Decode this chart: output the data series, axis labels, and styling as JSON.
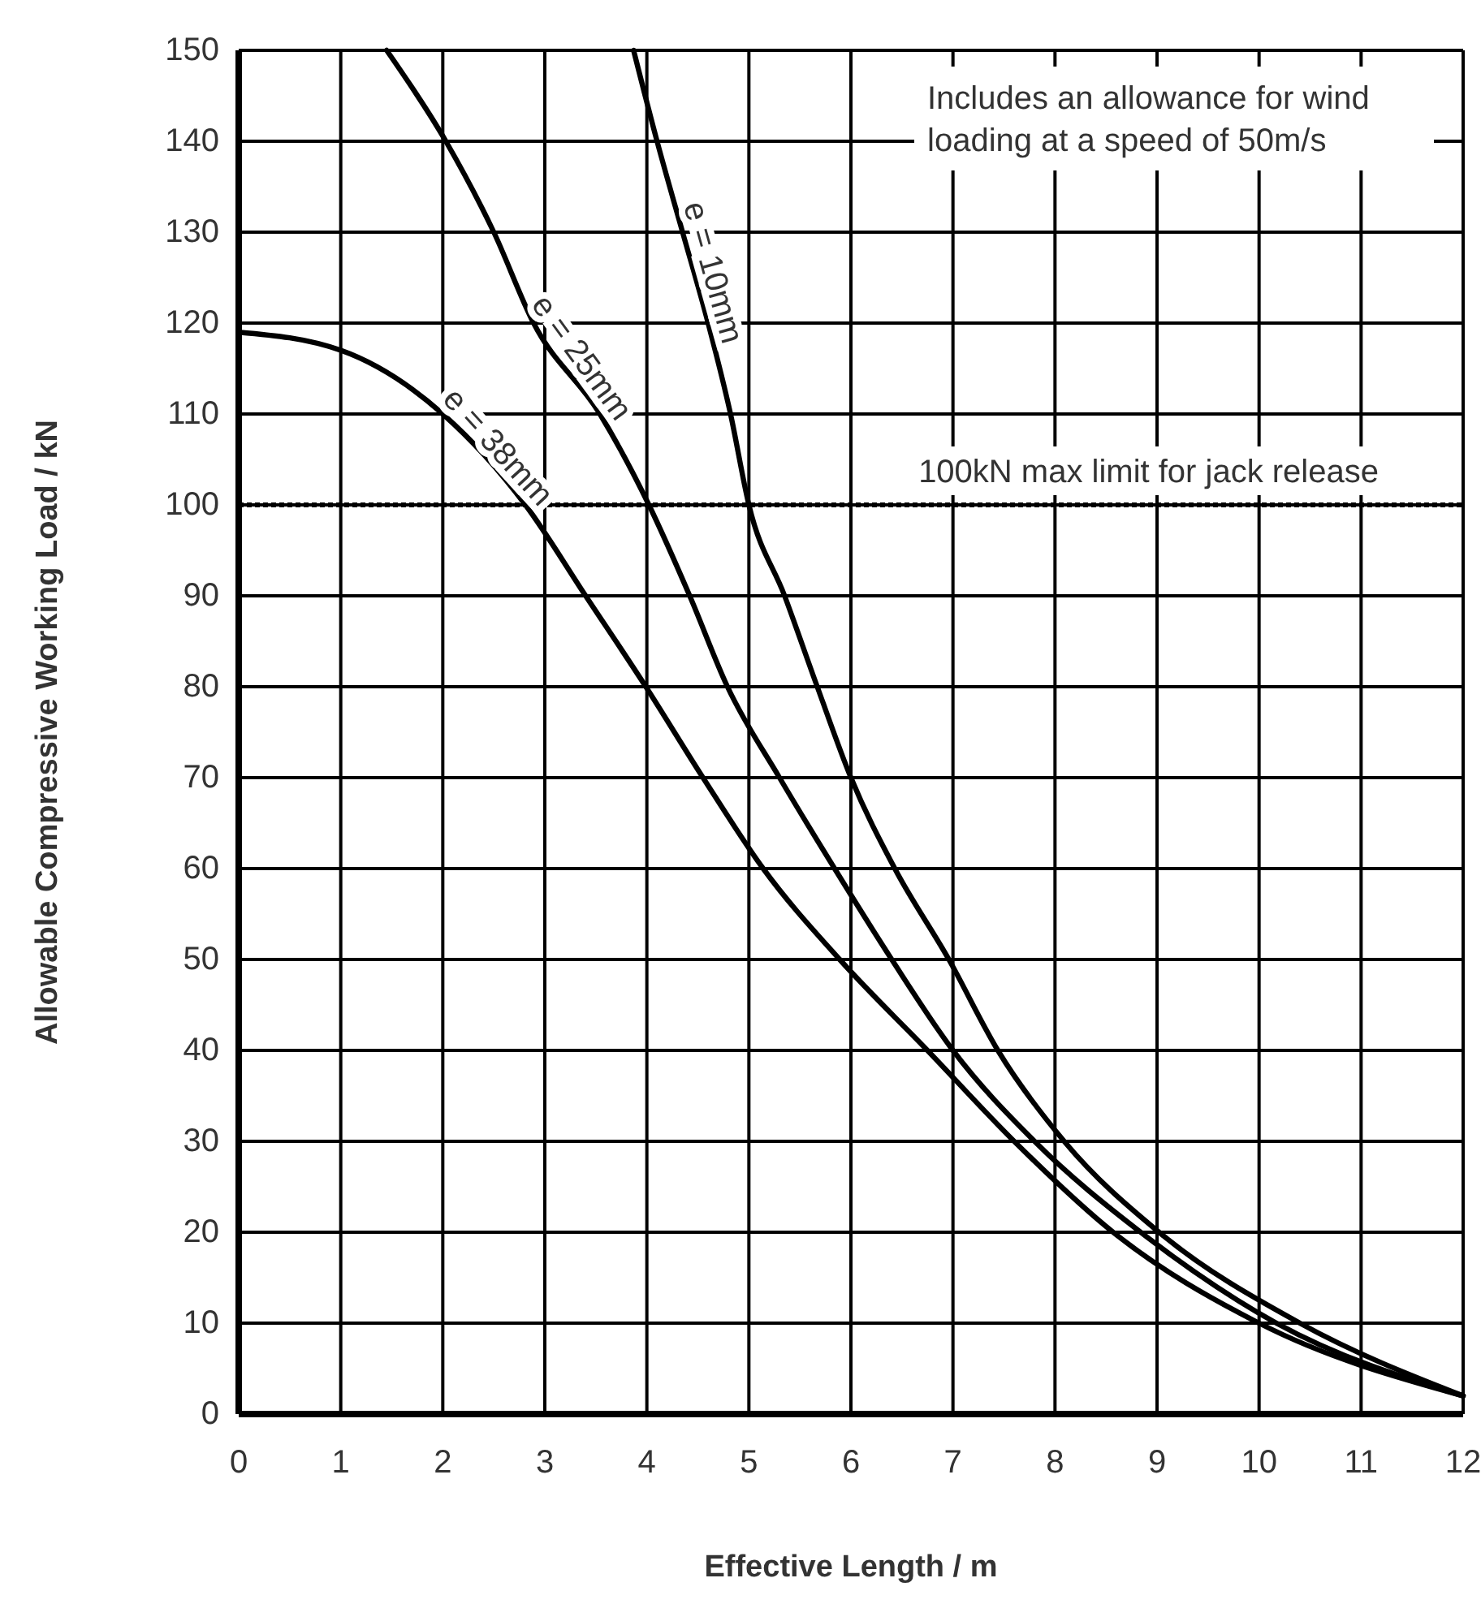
{
  "chart_data": {
    "type": "line",
    "xlabel": "Effective Length / m",
    "ylabel": "Allowable Compressive Working Load / kN",
    "xlim": [
      0,
      12
    ],
    "xticks": [
      0,
      1,
      2,
      3,
      4,
      5,
      6,
      7,
      8,
      9,
      10,
      11,
      12
    ],
    "ylim": [
      0,
      150
    ],
    "yticks": [
      0,
      10,
      20,
      30,
      40,
      50,
      60,
      70,
      80,
      90,
      100,
      110,
      120,
      130,
      140,
      150
    ],
    "grid": true,
    "marker": "none",
    "line_style": "solid",
    "series": [
      {
        "name": "e = 10mm",
        "color": "#000000",
        "x": [
          3.87,
          4.1,
          4.35,
          4.6,
          4.82,
          5.0,
          5.35,
          5.67,
          6.0,
          6.43,
          6.96,
          7.44,
          8.09,
          9.02,
          10.4,
          12
        ],
        "values": [
          150,
          140,
          130,
          120,
          110,
          100,
          90,
          80,
          70,
          60,
          50,
          40,
          30,
          20,
          10,
          2
        ]
      },
      {
        "name": "e = 25mm",
        "color": "#000000",
        "x": [
          1.45,
          2.03,
          2.5,
          2.89,
          3.54,
          4.02,
          4.42,
          4.79,
          5.3,
          5.84,
          6.4,
          7.0,
          7.8,
          8.84,
          10.17,
          12
        ],
        "values": [
          150,
          140,
          130,
          120,
          110,
          100,
          90,
          80,
          70,
          60,
          50,
          40,
          30,
          20,
          10,
          2
        ]
      },
      {
        "name": "e = 38mm",
        "color": "#000000",
        "x": [
          0,
          1,
          2,
          2.81,
          3.4,
          3.99,
          4.55,
          5.14,
          5.89,
          6.75,
          7.6,
          8.57,
          10.0,
          12
        ],
        "values": [
          119,
          117,
          110,
          100,
          90,
          80,
          70,
          60,
          50,
          40,
          30,
          20,
          10,
          2
        ]
      }
    ],
    "ref_lines": [
      {
        "axis": "y",
        "value": 100,
        "label": "100kN max limit for jack release",
        "color": "#000000",
        "line_style": "dotted"
      }
    ],
    "annotations": [
      "Includes an allowance for wind loading at a speed of 50m/s"
    ]
  }
}
